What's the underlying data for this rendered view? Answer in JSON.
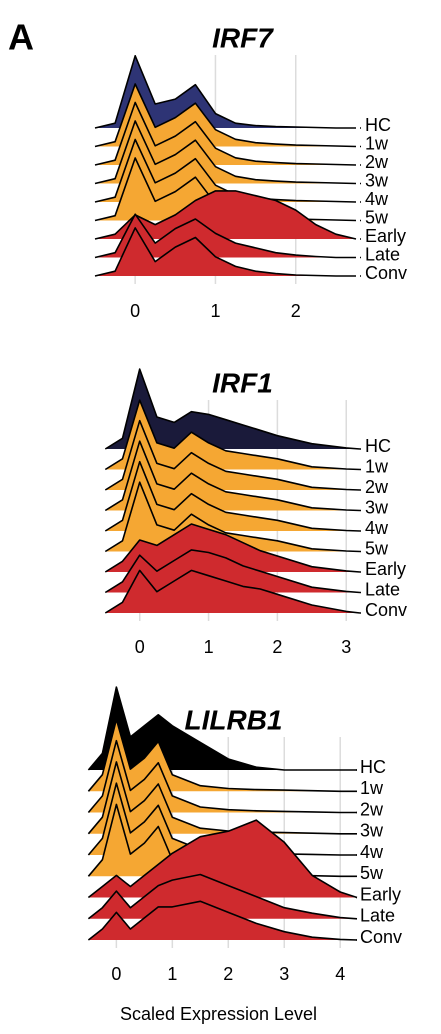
{
  "panel_label": "A",
  "chart_data": [
    {
      "type": "ridgeline",
      "title": "IRF7",
      "xlim": [
        -0.5,
        2.8
      ],
      "xticks": [
        0,
        1,
        2
      ],
      "grid": true,
      "x": [
        -0.5,
        -0.25,
        0,
        0.25,
        0.5,
        0.75,
        1,
        1.25,
        1.5,
        1.75,
        2,
        2.25,
        2.5,
        2.75
      ],
      "series": [
        {
          "name": "HC",
          "color": "#2e3475",
          "values": [
            0,
            0.1,
            1.5,
            0.5,
            0.6,
            0.9,
            0.3,
            0.1,
            0.05,
            0.03,
            0.02,
            0.01,
            0,
            0
          ]
        },
        {
          "name": "1w",
          "color": "#f5a733",
          "values": [
            0,
            0.1,
            1.3,
            0.4,
            0.6,
            0.9,
            0.35,
            0.15,
            0.08,
            0.05,
            0.03,
            0.02,
            0.01,
            0
          ]
        },
        {
          "name": "2w",
          "color": "#f5a733",
          "values": [
            0,
            0.1,
            1.3,
            0.4,
            0.6,
            0.9,
            0.35,
            0.15,
            0.08,
            0.05,
            0.03,
            0.02,
            0.01,
            0
          ]
        },
        {
          "name": "3w",
          "color": "#f5a733",
          "values": [
            0,
            0.1,
            1.3,
            0.4,
            0.6,
            0.9,
            0.35,
            0.15,
            0.08,
            0.05,
            0.03,
            0.02,
            0.01,
            0
          ]
        },
        {
          "name": "4w",
          "color": "#f5a733",
          "values": [
            0,
            0.1,
            1.3,
            0.4,
            0.6,
            0.9,
            0.35,
            0.15,
            0.08,
            0.05,
            0.03,
            0.02,
            0.01,
            0
          ]
        },
        {
          "name": "5w",
          "color": "#f5a733",
          "values": [
            0,
            0.1,
            1.3,
            0.4,
            0.6,
            0.9,
            0.35,
            0.15,
            0.08,
            0.05,
            0.03,
            0.02,
            0.01,
            0
          ]
        },
        {
          "name": "Early",
          "color": "#cf2a2e",
          "values": [
            0,
            0.1,
            0.5,
            0.3,
            0.5,
            0.8,
            1.0,
            1.0,
            0.9,
            0.8,
            0.6,
            0.3,
            0.1,
            0
          ]
        },
        {
          "name": "Late",
          "color": "#cf2a2e",
          "values": [
            0,
            0.1,
            0.9,
            0.3,
            0.6,
            0.8,
            0.5,
            0.3,
            0.2,
            0.1,
            0.05,
            0.02,
            0,
            0
          ]
        },
        {
          "name": "Conv",
          "color": "#cf2a2e",
          "values": [
            0,
            0.1,
            1.0,
            0.3,
            0.6,
            0.8,
            0.4,
            0.2,
            0.1,
            0.05,
            0.02,
            0.01,
            0,
            0
          ]
        }
      ]
    },
    {
      "type": "ridgeline",
      "title": "IRF1",
      "xlim": [
        -0.65,
        3.2
      ],
      "xticks": [
        0,
        1,
        2,
        3
      ],
      "grid": true,
      "x": [
        -0.5,
        -0.25,
        0,
        0.25,
        0.5,
        0.75,
        1,
        1.25,
        1.5,
        1.75,
        2,
        2.5,
        3,
        3.2
      ],
      "series": [
        {
          "name": "HC",
          "color": "#1a1a3a",
          "values": [
            0,
            0.2,
            1.5,
            0.6,
            0.5,
            0.7,
            0.65,
            0.55,
            0.45,
            0.35,
            0.25,
            0.1,
            0.02,
            0
          ]
        },
        {
          "name": "1w",
          "color": "#f5a733",
          "values": [
            0,
            0.2,
            1.3,
            0.5,
            0.4,
            0.7,
            0.5,
            0.35,
            0.3,
            0.25,
            0.2,
            0.05,
            0.01,
            0
          ]
        },
        {
          "name": "2w",
          "color": "#f5a733",
          "values": [
            0,
            0.2,
            1.3,
            0.5,
            0.4,
            0.7,
            0.5,
            0.35,
            0.3,
            0.25,
            0.2,
            0.05,
            0.01,
            0
          ]
        },
        {
          "name": "3w",
          "color": "#f5a733",
          "values": [
            0,
            0.2,
            1.3,
            0.5,
            0.4,
            0.7,
            0.5,
            0.35,
            0.3,
            0.25,
            0.2,
            0.05,
            0.01,
            0
          ]
        },
        {
          "name": "4w",
          "color": "#f5a733",
          "values": [
            0,
            0.2,
            1.3,
            0.5,
            0.4,
            0.7,
            0.5,
            0.35,
            0.3,
            0.25,
            0.2,
            0.05,
            0.01,
            0
          ]
        },
        {
          "name": "5w",
          "color": "#f5a733",
          "values": [
            0,
            0.2,
            1.3,
            0.5,
            0.4,
            0.7,
            0.5,
            0.35,
            0.3,
            0.25,
            0.2,
            0.05,
            0.01,
            0
          ]
        },
        {
          "name": "Early",
          "color": "#cf2a2e",
          "values": [
            0,
            0.2,
            0.6,
            0.5,
            0.7,
            0.9,
            0.8,
            0.7,
            0.55,
            0.4,
            0.3,
            0.1,
            0.02,
            0
          ]
        },
        {
          "name": "Late",
          "color": "#cf2a2e",
          "values": [
            0,
            0.2,
            0.7,
            0.4,
            0.6,
            0.8,
            0.75,
            0.65,
            0.5,
            0.4,
            0.3,
            0.1,
            0.02,
            0
          ]
        },
        {
          "name": "Conv",
          "color": "#cf2a2e",
          "values": [
            0,
            0.2,
            0.8,
            0.4,
            0.6,
            0.8,
            0.7,
            0.6,
            0.5,
            0.45,
            0.35,
            0.15,
            0.03,
            0
          ]
        }
      ]
    },
    {
      "type": "ridgeline",
      "title": "LILRB1",
      "xlim": [
        -0.65,
        4.3
      ],
      "xticks": [
        0,
        1,
        2,
        3,
        4
      ],
      "grid": true,
      "x_label": "Scaled Expression Level",
      "x": [
        -0.5,
        -0.25,
        0,
        0.25,
        0.5,
        0.75,
        1,
        1.5,
        2,
        2.5,
        3,
        3.5,
        4,
        4.3
      ],
      "series": [
        {
          "name": "HC",
          "color": "#000000",
          "values": [
            0,
            0.3,
            1.5,
            0.6,
            0.8,
            1.0,
            0.8,
            0.5,
            0.2,
            0.05,
            0,
            0,
            0,
            0
          ]
        },
        {
          "name": "1w",
          "color": "#f5a733",
          "values": [
            0,
            0.3,
            1.3,
            0.4,
            0.6,
            0.9,
            0.3,
            0.1,
            0.05,
            0.03,
            0.02,
            0.01,
            0,
            0
          ]
        },
        {
          "name": "2w",
          "color": "#f5a733",
          "values": [
            0,
            0.3,
            1.3,
            0.4,
            0.6,
            0.9,
            0.3,
            0.1,
            0.05,
            0.03,
            0.02,
            0.01,
            0,
            0
          ]
        },
        {
          "name": "3w",
          "color": "#f5a733",
          "values": [
            0,
            0.3,
            1.3,
            0.4,
            0.6,
            0.9,
            0.3,
            0.1,
            0.05,
            0.03,
            0.02,
            0.01,
            0,
            0
          ]
        },
        {
          "name": "4w",
          "color": "#f5a733",
          "values": [
            0,
            0.3,
            1.3,
            0.4,
            0.6,
            0.9,
            0.3,
            0.1,
            0.05,
            0.03,
            0.02,
            0.01,
            0,
            0
          ]
        },
        {
          "name": "5w",
          "color": "#f5a733",
          "values": [
            0,
            0.3,
            1.3,
            0.4,
            0.6,
            0.9,
            0.3,
            0.1,
            0.05,
            0.03,
            0.02,
            0.01,
            0,
            0
          ]
        },
        {
          "name": "Early",
          "color": "#cf2a2e",
          "values": [
            0,
            0.2,
            0.4,
            0.2,
            0.4,
            0.6,
            0.8,
            1.1,
            1.2,
            1.4,
            1.0,
            0.4,
            0.1,
            0
          ]
        },
        {
          "name": "Late",
          "color": "#cf2a2e",
          "values": [
            0,
            0.2,
            0.5,
            0.2,
            0.4,
            0.6,
            0.7,
            0.8,
            0.6,
            0.4,
            0.2,
            0.1,
            0.02,
            0
          ]
        },
        {
          "name": "Conv",
          "color": "#cf2a2e",
          "values": [
            0,
            0.2,
            0.5,
            0.2,
            0.4,
            0.6,
            0.6,
            0.7,
            0.5,
            0.3,
            0.15,
            0.05,
            0.01,
            0
          ]
        }
      ]
    }
  ]
}
